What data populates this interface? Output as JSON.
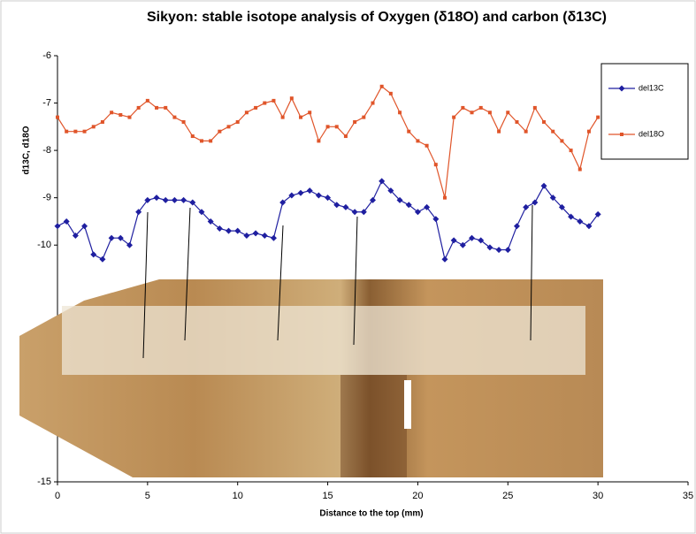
{
  "chart_data": {
    "type": "line",
    "title": "Sikyon: stable isotope analysis of Oxygen (δ18O) and carbon (δ13C)",
    "x_label": "Distance to the top (mm)",
    "y_label": "d13C, d18O",
    "x": [
      0,
      0.5,
      1,
      1.5,
      2,
      2.5,
      3,
      3.5,
      4,
      4.5,
      5,
      5.5,
      6,
      6.5,
      7,
      7.5,
      8,
      8.5,
      9,
      9.5,
      10,
      10.5,
      11,
      11.5,
      12,
      12.5,
      13,
      13.5,
      14,
      14.5,
      15,
      15.5,
      16,
      16.5,
      17,
      17.5,
      18,
      18.5,
      19,
      19.5,
      20,
      20.5,
      21,
      21.5,
      22,
      22.5,
      23,
      23.5,
      24,
      24.5,
      25,
      25.5,
      26,
      26.5,
      27,
      27.5,
      28,
      28.5,
      29,
      29.5,
      30
    ],
    "series": [
      {
        "name": "del13C",
        "color": "#1f1fa0",
        "marker": "diamond",
        "values": [
          -9.6,
          -9.5,
          -9.8,
          -9.6,
          -10.2,
          -10.3,
          -9.85,
          -9.85,
          -10.0,
          -9.3,
          -9.05,
          -9.0,
          -9.05,
          -9.05,
          -9.05,
          -9.1,
          -9.3,
          -9.5,
          -9.65,
          -9.7,
          -9.7,
          -9.8,
          -9.75,
          -9.8,
          -9.85,
          -9.1,
          -8.95,
          -8.9,
          -8.85,
          -8.95,
          -9.0,
          -9.15,
          -9.2,
          -9.3,
          -9.3,
          -9.05,
          -8.65,
          -8.85,
          -9.05,
          -9.15,
          -9.3,
          -9.2,
          -9.45,
          -10.3,
          -9.9,
          -10.0,
          -9.85,
          -9.9,
          -10.05,
          -10.1,
          -10.1,
          -9.6,
          -9.2,
          -9.1,
          -8.75,
          -9.0,
          -9.2,
          -9.4,
          -9.5,
          -9.6,
          -9.35
        ]
      },
      {
        "name": "del18O",
        "color": "#e0552a",
        "marker": "square",
        "values": [
          -7.3,
          -7.6,
          -7.6,
          -7.6,
          -7.5,
          -7.4,
          -7.2,
          -7.25,
          -7.3,
          -7.1,
          -6.95,
          -7.1,
          -7.1,
          -7.3,
          -7.4,
          -7.7,
          -7.8,
          -7.8,
          -7.6,
          -7.5,
          -7.4,
          -7.2,
          -7.1,
          -7.0,
          -6.95,
          -7.3,
          -6.9,
          -7.3,
          -7.2,
          -7.8,
          -7.5,
          -7.5,
          -7.7,
          -7.4,
          -7.3,
          -7.0,
          -6.65,
          -6.8,
          -7.2,
          -7.6,
          -7.8,
          -7.9,
          -8.3,
          -9.0,
          -7.3,
          -7.1,
          -7.2,
          -7.1,
          -7.2,
          -7.6,
          -7.2,
          -7.4,
          -7.6,
          -7.1,
          -7.4,
          -7.6,
          -7.8,
          -8.0,
          -8.4,
          -7.6,
          -7.3
        ]
      }
    ],
    "xlim": [
      0,
      35
    ],
    "xticks": [
      0,
      5,
      10,
      15,
      20,
      25,
      30,
      35
    ],
    "ylim": [
      -15,
      -6
    ],
    "yticks": [
      -6,
      -7,
      -8,
      -9,
      -10,
      -15
    ],
    "legend": "right"
  }
}
